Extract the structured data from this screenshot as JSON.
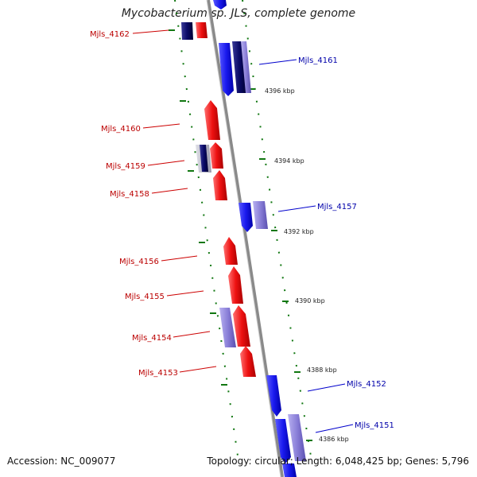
{
  "title": "Mycobacterium sp. JLS, complete genome",
  "footer": {
    "accession": "Accession: NC_009077",
    "stats": "Topology: circular; Length: 6,048,425 bp; Genes: 5,796"
  },
  "colors": {
    "minus_strand": "#ee1111",
    "plus_strand": "#1a1aee",
    "plus_light": "#8a7fd8",
    "plus_dark": "#0a0a66",
    "backbone": "#888888",
    "tick": "#117711",
    "label_minus": "#bb0000",
    "label_plus": "#0000aa"
  },
  "scale_ticks": [
    {
      "label": "4396 kbp"
    },
    {
      "label": "4394 kbp"
    },
    {
      "label": "4392 kbp"
    },
    {
      "label": "4390 kbp"
    },
    {
      "label": "4388 kbp"
    },
    {
      "label": "4386 kbp"
    }
  ],
  "genes": [
    {
      "name": "Mjls_4162",
      "strand": "minus"
    },
    {
      "name": "Mjls_4161",
      "strand": "plus"
    },
    {
      "name": "Mjls_4160",
      "strand": "minus"
    },
    {
      "name": "Mjls_4159",
      "strand": "minus"
    },
    {
      "name": "Mjls_4158",
      "strand": "minus"
    },
    {
      "name": "Mjls_4157",
      "strand": "plus"
    },
    {
      "name": "Mjls_4156",
      "strand": "minus"
    },
    {
      "name": "Mjls_4155",
      "strand": "minus"
    },
    {
      "name": "Mjls_4154",
      "strand": "minus"
    },
    {
      "name": "Mjls_4153",
      "strand": "minus"
    },
    {
      "name": "Mjls_4152",
      "strand": "plus"
    },
    {
      "name": "Mjls_4151",
      "strand": "plus"
    }
  ]
}
